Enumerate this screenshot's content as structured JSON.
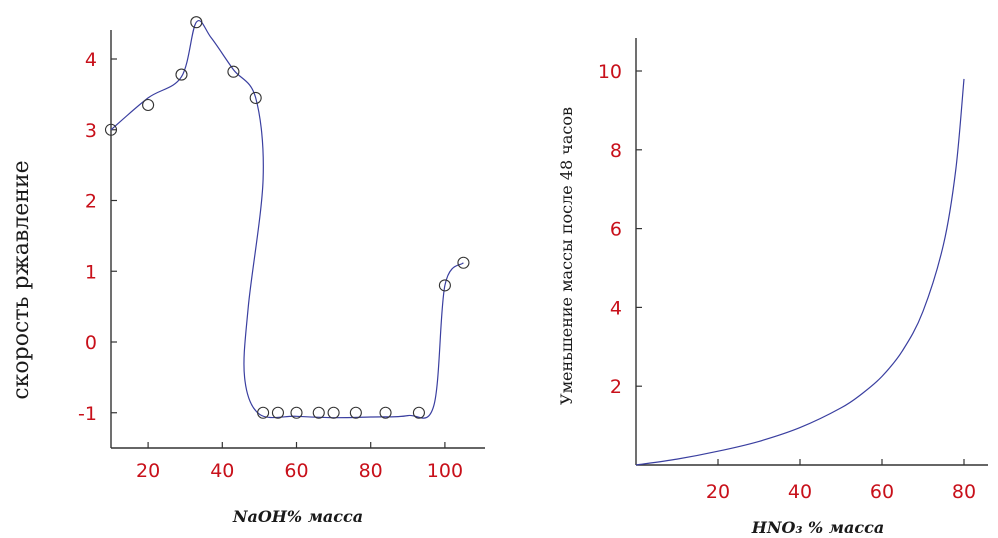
{
  "chart_data": [
    {
      "type": "line",
      "xlabel": "NaOH% масса",
      "ylabel": "скорость ржавление",
      "xlim": [
        10,
        107
      ],
      "ylim": [
        -1.5,
        4.5
      ],
      "xticks": [
        20,
        40,
        60,
        80,
        100
      ],
      "yticks": [
        -1,
        0,
        1,
        2,
        3,
        4
      ],
      "series": [
        {
          "points": [
            [
              10,
              3.0
            ],
            [
              20,
              3.35
            ],
            [
              29,
              3.78
            ],
            [
              33,
              4.52
            ],
            [
              43,
              3.82
            ],
            [
              49,
              3.45
            ],
            [
              51,
              -1.0
            ],
            [
              55,
              -1.0
            ],
            [
              60,
              -1.0
            ],
            [
              66,
              -1.0
            ],
            [
              70,
              -1.0
            ],
            [
              76,
              -1.0
            ],
            [
              84,
              -1.0
            ],
            [
              93,
              -1.0
            ],
            [
              100,
              0.8
            ],
            [
              105,
              1.12
            ]
          ],
          "curve": [
            [
              10,
              3.0
            ],
            [
              20,
              3.45
            ],
            [
              29,
              3.75
            ],
            [
              33,
              4.52
            ],
            [
              37,
              4.3
            ],
            [
              43,
              3.85
            ],
            [
              49,
              3.45
            ],
            [
              51,
              2.3
            ],
            [
              47,
              0.5
            ],
            [
              46,
              -0.5
            ],
            [
              50,
              -1.02
            ],
            [
              60,
              -1.05
            ],
            [
              70,
              -1.07
            ],
            [
              80,
              -1.06
            ],
            [
              90,
              -1.04
            ],
            [
              97,
              -0.9
            ],
            [
              100,
              0.8
            ],
            [
              105,
              1.12
            ]
          ],
          "color": "#3a3fa0"
        }
      ]
    },
    {
      "type": "line",
      "xlabel": "HNO₃ % масса",
      "ylabel": "Уменьшение массы после 48 часов",
      "xlim": [
        0,
        88
      ],
      "ylim": [
        0,
        10.8
      ],
      "xticks": [
        20,
        40,
        60,
        80
      ],
      "yticks": [
        2,
        4,
        6,
        8,
        10
      ],
      "series": [
        {
          "x": [
            0,
            10,
            20,
            30,
            40,
            50,
            55,
            60,
            65,
            70,
            75,
            78,
            80
          ],
          "y": [
            0,
            0.15,
            0.35,
            0.6,
            0.95,
            1.45,
            1.8,
            2.25,
            2.9,
            3.9,
            5.6,
            7.5,
            9.8
          ],
          "color": "#3a3fa0"
        }
      ]
    }
  ]
}
